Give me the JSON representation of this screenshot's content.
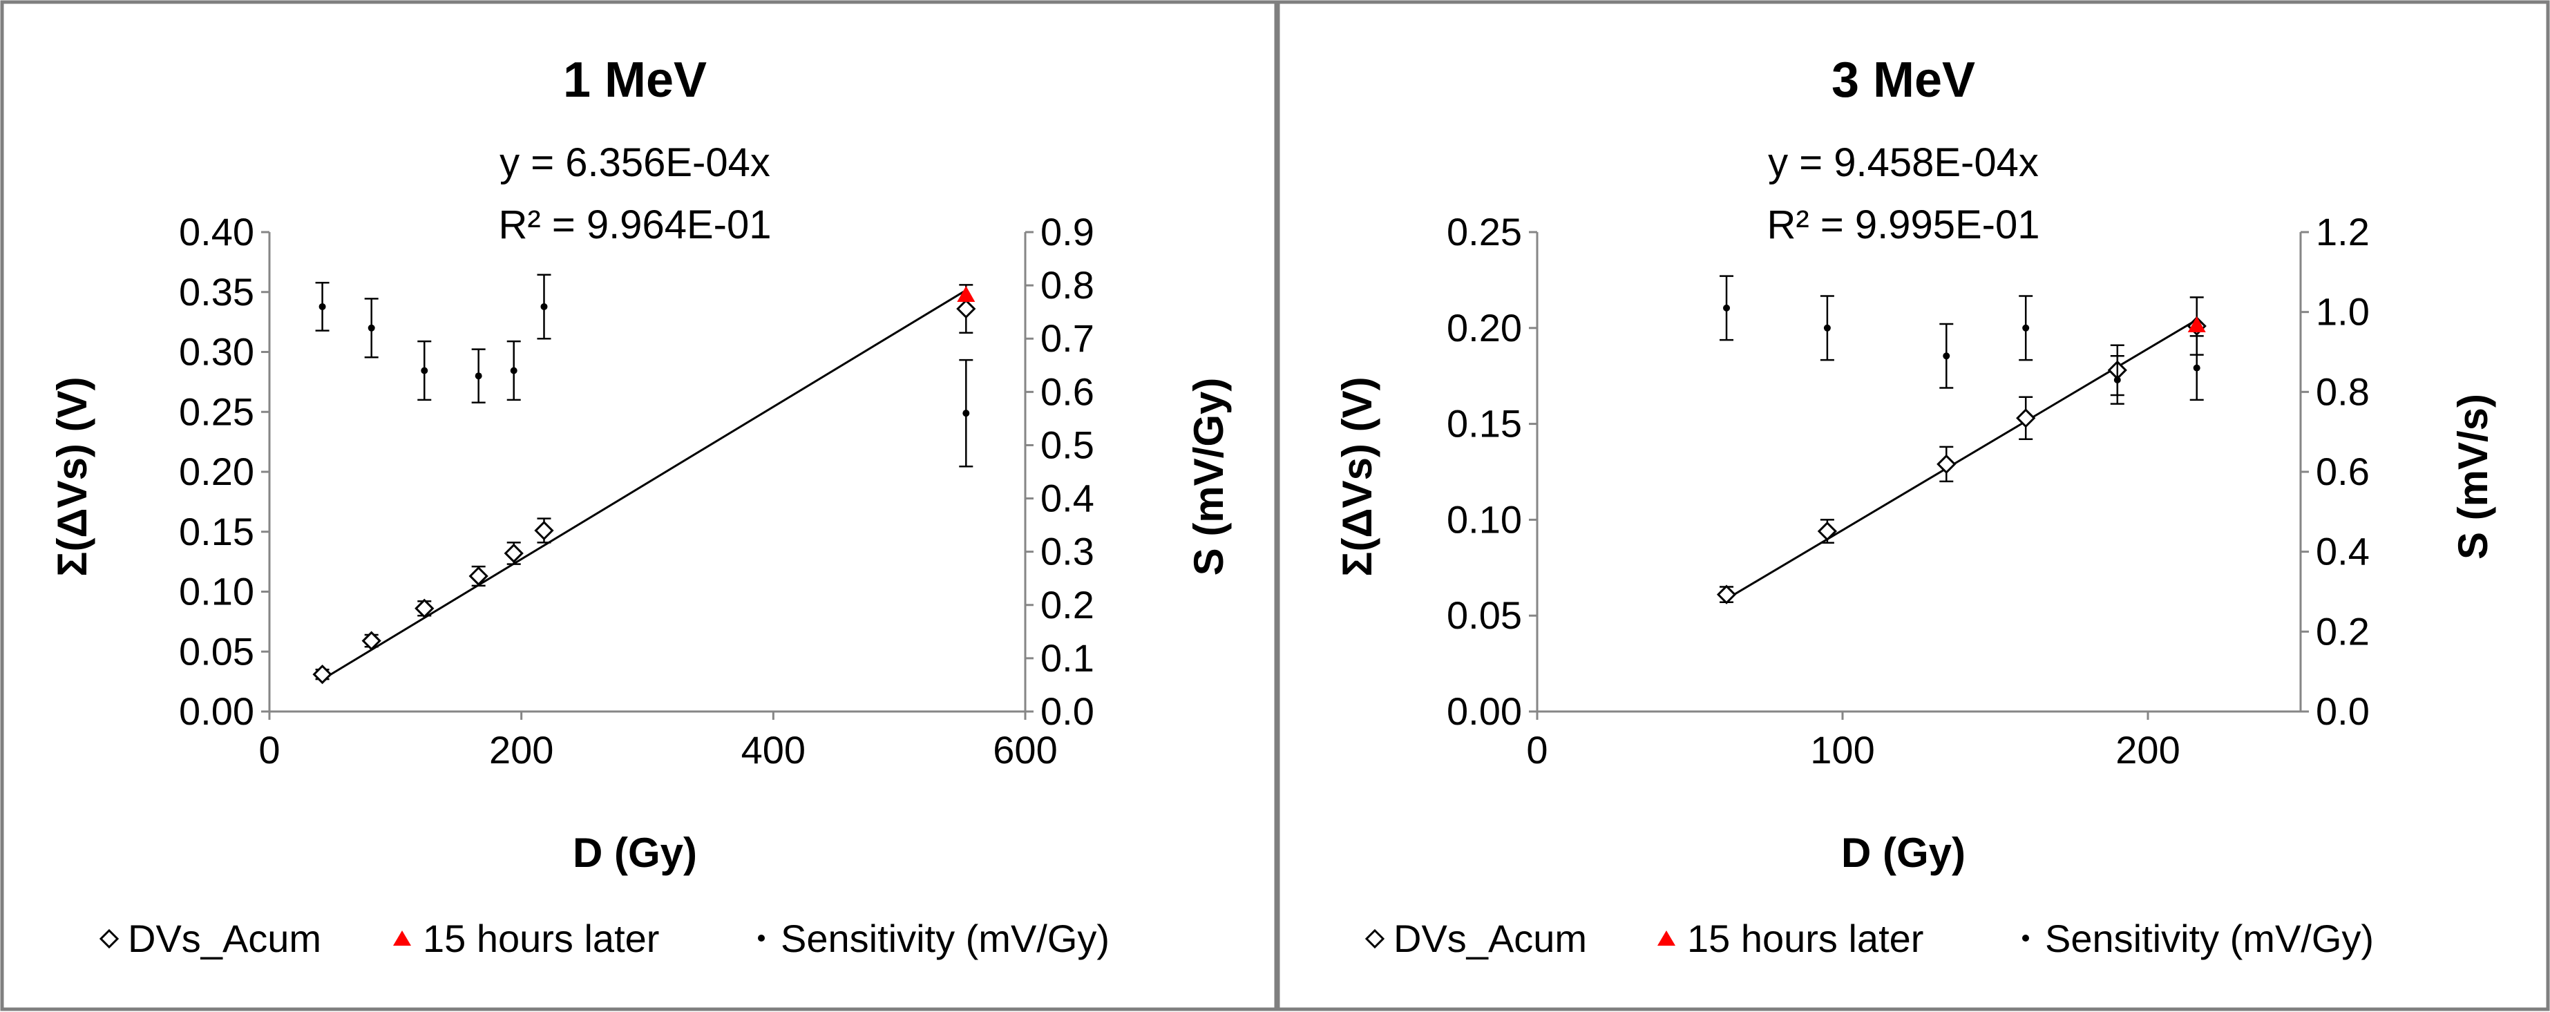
{
  "chart_data": [
    {
      "type": "scatter",
      "title": "1 MeV",
      "equation": "y = 6.356E-04x",
      "r_squared": "R² = 9.964E-01",
      "xlabel": "D (Gy)",
      "ylabel": "Σ(ΔVs) (V)",
      "y2label": "S (mV/Gy)",
      "xlim": [
        0,
        600
      ],
      "ylim": [
        0,
        0.4
      ],
      "y2lim": [
        0,
        0.9
      ],
      "x_ticks": [
        "0",
        "200",
        "400",
        "600"
      ],
      "y_ticks": [
        "0.00",
        "0.05",
        "0.10",
        "0.15",
        "0.20",
        "0.25",
        "0.30",
        "0.35",
        "0.40"
      ],
      "y2_ticks": [
        "0.0",
        "0.1",
        "0.2",
        "0.3",
        "0.4",
        "0.5",
        "0.6",
        "0.7",
        "0.8",
        "0.9"
      ],
      "trendline": {
        "slope": 0.0006356,
        "x_range": [
          40,
          553
        ]
      },
      "series": [
        {
          "name": "DVs_Acum",
          "axis": "left",
          "marker": "diamond",
          "x": [
            42,
            81,
            123,
            166,
            194,
            218,
            553
          ],
          "y": [
            0.031,
            0.059,
            0.086,
            0.113,
            0.132,
            0.151,
            0.336
          ],
          "err": [
            0.004,
            0.005,
            0.006,
            0.008,
            0.009,
            0.01,
            0.02
          ]
        },
        {
          "name": "15 hours later",
          "axis": "left",
          "marker": "triangle",
          "color": "#ff0000",
          "x": [
            553
          ],
          "y": [
            0.347
          ],
          "err": [
            0
          ]
        },
        {
          "name": "Sensitivity (mV/Gy)",
          "axis": "right",
          "marker": "dot",
          "x": [
            42,
            81,
            123,
            166,
            194,
            218,
            553
          ],
          "y": [
            0.76,
            0.72,
            0.64,
            0.63,
            0.64,
            0.76,
            0.56
          ],
          "err": [
            0.045,
            0.055,
            0.055,
            0.05,
            0.055,
            0.06,
            0.1
          ]
        }
      ],
      "legend": [
        "DVs_Acum",
        "15 hours later",
        "Sensitivity (mV/Gy)"
      ]
    },
    {
      "type": "scatter",
      "title": "3 MeV",
      "equation": "y = 9.458E-04x",
      "r_squared": "R² = 9.995E-01",
      "xlabel": "D (Gy)",
      "ylabel": "Σ(ΔVs) (V)",
      "y2label": "S (mV/s)",
      "xlim": [
        0,
        250
      ],
      "ylim": [
        0,
        0.25
      ],
      "y2lim": [
        0,
        1.2
      ],
      "x_ticks": [
        "0",
        "100",
        "200"
      ],
      "x_tick_values": [
        0,
        100,
        200
      ],
      "y_ticks": [
        "0.00",
        "0.05",
        "0.10",
        "0.15",
        "0.20",
        "0.25"
      ],
      "y2_ticks": [
        "0.0",
        "0.2",
        "0.4",
        "0.6",
        "0.8",
        "1.0",
        "1.2"
      ],
      "trendline": {
        "slope": 0.0009458,
        "x_range": [
          62,
          216
        ]
      },
      "series": [
        {
          "name": "DVs_Acum",
          "axis": "left",
          "marker": "diamond",
          "x": [
            62,
            95,
            134,
            160,
            190,
            216
          ],
          "y": [
            0.061,
            0.094,
            0.129,
            0.153,
            0.178,
            0.201
          ],
          "err": [
            0.004,
            0.006,
            0.009,
            0.011,
            0.013,
            0.015
          ]
        },
        {
          "name": "15 hours later",
          "axis": "left",
          "marker": "triangle",
          "color": "#ff0000",
          "x": [
            216
          ],
          "y": [
            0.201
          ],
          "err": [
            0
          ]
        },
        {
          "name": "Sensitivity (mV/Gy)",
          "axis": "right",
          "marker": "dot",
          "x": [
            62,
            95,
            134,
            160,
            190,
            216
          ],
          "y": [
            1.01,
            0.96,
            0.89,
            0.96,
            0.83,
            0.86
          ],
          "err": [
            0.08,
            0.08,
            0.08,
            0.08,
            0.06,
            0.08
          ]
        }
      ],
      "legend": [
        "DVs_Acum",
        "15 hours later",
        "Sensitivity (mV/Gy)"
      ]
    }
  ]
}
